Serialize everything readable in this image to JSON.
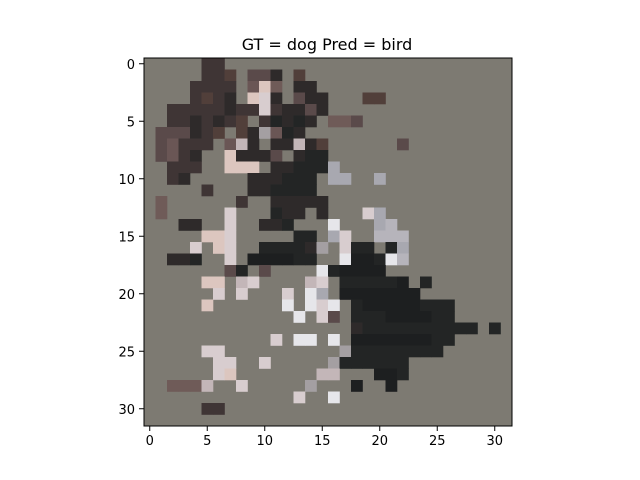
{
  "chart_data": {
    "type": "heatmap",
    "title": "GT = dog Pred = bird",
    "xlabel": "",
    "ylabel": "",
    "grid": false,
    "image_size": [
      32,
      32
    ],
    "x_ticks": [
      0,
      5,
      10,
      15,
      20,
      25,
      30
    ],
    "y_ticks": [
      0,
      5,
      10,
      15,
      20,
      25,
      30
    ],
    "x_tick_labels": [
      "0",
      "5",
      "10",
      "15",
      "20",
      "25",
      "30"
    ],
    "y_tick_labels": [
      "0",
      "5",
      "10",
      "15",
      "20",
      "25",
      "30"
    ],
    "xlim": [
      -0.5,
      31.5
    ],
    "ylim": [
      31.5,
      -0.5
    ],
    "background_color": "#7d7a72",
    "pixel_colors": {
      "a": "#3f3535",
      "b": "#2e2a2a",
      "c": "#5a4a4a",
      "d": "#6a5655",
      "e": "#d8cdcf",
      "f": "#e6e6ea",
      "g": "#a8a8b0",
      "h": "#232525",
      "i": "#1d1f20",
      "j": "#513f3a",
      "k": "#dcc6bf",
      "l": "#c3b6b8",
      "m": "#a49fa2",
      "n": "#6f5b58",
      "o": "#b6b4bb",
      "p": "#8f7f7d",
      "q": "#c9c8cc"
    },
    "pixels": [
      ".....aa.........................",
      ".....aaj.ccb.j..................",
      "....aaaa.dkn.bb.................",
      "....ajab.keb.cbb...jj...........",
      "..aaaaabaaeabbcb...................",
      "..aababaj.ahbhb.nnc..............",
      ".cccbaj.jbmdhb..................",
      ".cdaaa.dlb.bblbj......c..........",
      ".cdab..kbbbc.bhh...............",
      "..aaa..kkk.bbhhhg...............",
      "..ab.....bbbhhh.gg..g...........",
      ".....a...bbhhhh..................",
      ".n......a..bbbbb.................",
      ".n.....e...hbb.b...eg............",
      "...bb..e..bbh...f...go...........",
      ".....kke.....hh.ge..ooo..........",
      "....e.ke..hhhhbm.ehh.hg..........",
      "..bbh..e.iiiihh..fiihfo...........",
      ".......ch.c....fhiiii..............",
      ".....kk.le....le.hhhhhi.h.........",
      "......e.e...e.fg.iiiiiii..........",
      ".....k......f.fef.hiiiiihhh........",
      ".............f.ec.hhhiiiihh.......",
      "..................bhhhhhhhhhh.h...",
      "...........e.ff.f.iiiiiiihh.......",
      ".....ee..........mhhhhhhhh........",
      "......ee..e.....mhhhhhh..........",
      "......ek.......ll...iih..........",
      "..nnnl..e.....m...i..i...........",
      ".............e..f.................",
      ".....aa.........................",
      "................................"
    ]
  }
}
